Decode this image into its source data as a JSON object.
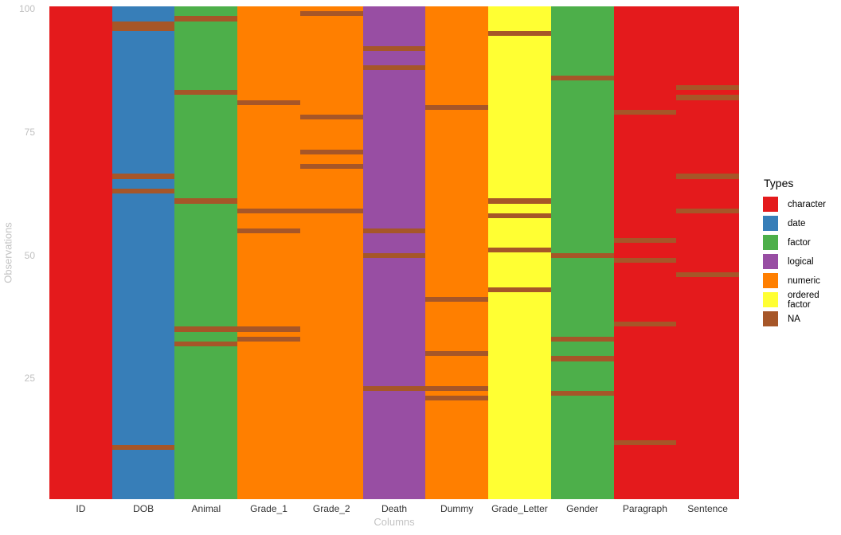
{
  "chart_data": {
    "type": "heatmap",
    "description": "vis_dat-style plot of column data types with NA positions",
    "xlabel": "Columns",
    "ylabel": "Observations",
    "x_categories": [
      "ID",
      "DOB",
      "Animal",
      "Grade_1",
      "Grade_2",
      "Death",
      "Dummy",
      "Grade_Letter",
      "Gender",
      "Paragraph",
      "Sentence"
    ],
    "y_ticks": [
      100,
      75,
      50,
      25
    ],
    "y_range": [
      1,
      100
    ],
    "n_observations": 100,
    "grid": false,
    "na_color": "#A65628",
    "legend": {
      "title": "Types",
      "position": "right",
      "entries": [
        {
          "label": "character",
          "color": "#E41A1C"
        },
        {
          "label": "date",
          "color": "#377EB8"
        },
        {
          "label": "factor",
          "color": "#4DAF4A"
        },
        {
          "label": "logical",
          "color": "#984EA3"
        },
        {
          "label": "numeric",
          "color": "#FF7F00"
        },
        {
          "label": "ordered factor",
          "color": "#FFFF33"
        },
        {
          "label": "NA",
          "color": "#A65628"
        }
      ]
    },
    "columns": [
      {
        "name": "ID",
        "type": "character",
        "color": "#E41A1C",
        "na_observations": []
      },
      {
        "name": "DOB",
        "type": "date",
        "color": "#377EB8",
        "na_observations": [
          97,
          96,
          66,
          63,
          11
        ]
      },
      {
        "name": "Animal",
        "type": "factor",
        "color": "#4DAF4A",
        "na_observations": [
          98,
          83,
          61,
          35,
          32
        ]
      },
      {
        "name": "Grade_1",
        "type": "numeric",
        "color": "#FF7F00",
        "na_observations": [
          81,
          59,
          55,
          35,
          33
        ]
      },
      {
        "name": "Grade_2",
        "type": "numeric",
        "color": "#FF7F00",
        "na_observations": [
          99,
          78,
          71,
          68,
          59
        ]
      },
      {
        "name": "Death",
        "type": "logical",
        "color": "#984EA3",
        "na_observations": [
          92,
          88,
          55,
          50,
          23
        ]
      },
      {
        "name": "Dummy",
        "type": "numeric",
        "color": "#FF7F00",
        "na_observations": [
          80,
          41,
          30,
          23,
          21
        ]
      },
      {
        "name": "Grade_Letter",
        "type": "ordered factor",
        "color": "#FFFF33",
        "na_observations": [
          95,
          61,
          58,
          51,
          43
        ]
      },
      {
        "name": "Gender",
        "type": "factor",
        "color": "#4DAF4A",
        "na_observations": [
          86,
          50,
          33,
          29,
          22
        ]
      },
      {
        "name": "Paragraph",
        "type": "character",
        "color": "#E41A1C",
        "na_observations": [
          79,
          53,
          49,
          36,
          12
        ]
      },
      {
        "name": "Sentence",
        "type": "character",
        "color": "#E41A1C",
        "na_observations": [
          84,
          82,
          66,
          59,
          46
        ]
      }
    ]
  }
}
